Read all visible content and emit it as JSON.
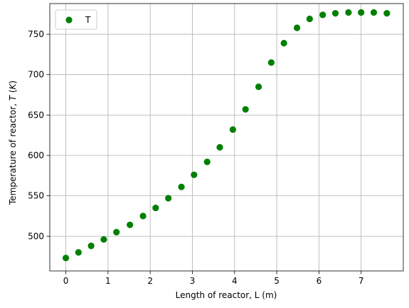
{
  "chart_data": {
    "type": "scatter",
    "title": "",
    "xlabel": "Length of reactor, L (m)",
    "ylabel_prefix": "Temperature of reactor, ",
    "ylabel_symbol": "T",
    "ylabel_unit_open": " (",
    "ylabel_unit": "K",
    "ylabel_unit_close": ")",
    "xlim": [
      -0.38,
      8.0
    ],
    "ylim": [
      457,
      788
    ],
    "xticks": [
      0,
      1,
      2,
      3,
      4,
      5,
      6,
      7
    ],
    "xtick_labels": [
      "0",
      "1",
      "2",
      "3",
      "4",
      "5",
      "6",
      "7"
    ],
    "yticks": [
      500,
      550,
      600,
      650,
      700,
      750
    ],
    "ytick_labels": [
      "500",
      "550",
      "600",
      "650",
      "700",
      "750"
    ],
    "grid": true,
    "legend_position": "top-left",
    "series": [
      {
        "name": "T",
        "color": "#008000",
        "marker": "circle",
        "x": [
          0.0,
          0.3,
          0.6,
          0.9,
          1.2,
          1.52,
          1.83,
          2.13,
          2.43,
          2.74,
          3.04,
          3.35,
          3.65,
          3.96,
          4.26,
          4.57,
          4.87,
          5.17,
          5.48,
          5.78,
          6.09,
          6.39,
          6.7,
          7.0,
          7.3,
          7.61
        ],
        "y": [
          473,
          480,
          488,
          496,
          505,
          514,
          525,
          535,
          547,
          561,
          576,
          592,
          610,
          632,
          657,
          685,
          715,
          739,
          758,
          769,
          774,
          776,
          777,
          777,
          777,
          776
        ]
      }
    ]
  }
}
